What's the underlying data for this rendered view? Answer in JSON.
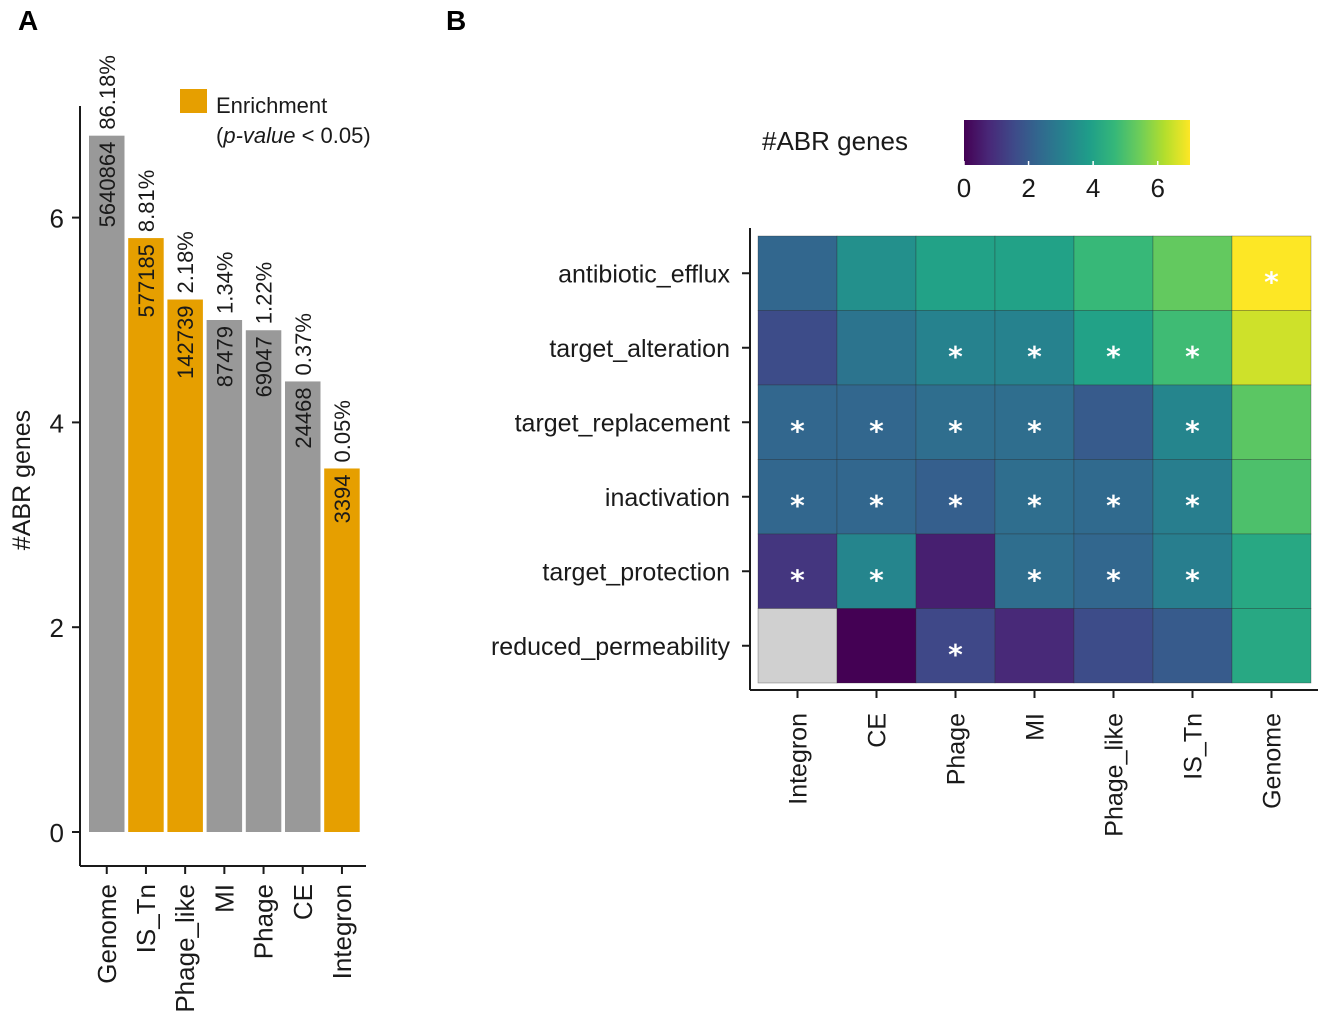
{
  "panels": {
    "a_label": "A",
    "b_label": "B"
  },
  "chart_data": [
    {
      "type": "bar",
      "panel": "A",
      "ylabel": "#ABR genes",
      "ylim": [
        0,
        7
      ],
      "yticks": [
        0,
        2,
        4,
        6
      ],
      "categories": [
        "Genome",
        "IS_Tn",
        "Phage_like",
        "MI",
        "Phage",
        "CE",
        "Integron"
      ],
      "values": [
        6.8,
        5.8,
        5.2,
        5.0,
        4.9,
        4.4,
        3.55
      ],
      "counts": [
        "5640864",
        "577185",
        "142739",
        "87479",
        "69047",
        "24468",
        "3394"
      ],
      "percents": [
        "86.18%",
        "8.81%",
        "2.18%",
        "1.34%",
        "1.22%",
        "0.37%",
        "0.05%"
      ],
      "enriched": [
        false,
        true,
        true,
        false,
        false,
        false,
        true
      ],
      "colors": {
        "enriched": "#E69F00",
        "default": "#999999"
      },
      "legend": {
        "label": "Enrichment",
        "note_prefix": "(",
        "note_italic": "p-value",
        "note_suffix": " < 0.05)",
        "position": "top-right"
      },
      "grid": false
    },
    {
      "type": "heatmap",
      "panel": "B",
      "rows": [
        "antibiotic_efflux",
        "target_alteration",
        "target_replacement",
        "inactivation",
        "target_protection",
        "reduced_permeability"
      ],
      "columns": [
        "Integron",
        "CE",
        "Phage",
        "MI",
        "Phage_like",
        "IS_Tn",
        "Genome"
      ],
      "values": [
        [
          2.3,
          3.5,
          4.0,
          4.0,
          4.7,
          5.3,
          7.0
        ],
        [
          1.6,
          2.7,
          3.1,
          3.1,
          4.0,
          4.8,
          6.5
        ],
        [
          2.3,
          2.3,
          2.5,
          2.5,
          2.0,
          3.2,
          5.2
        ],
        [
          2.3,
          2.3,
          2.1,
          2.5,
          2.4,
          3.0,
          5.0
        ],
        [
          1.1,
          3.2,
          0.6,
          2.5,
          2.3,
          3.0,
          4.2
        ],
        [
          null,
          0.0,
          1.5,
          0.8,
          1.6,
          2.0,
          4.2
        ]
      ],
      "significant": [
        [
          false,
          false,
          false,
          false,
          false,
          false,
          true
        ],
        [
          false,
          false,
          true,
          true,
          true,
          true,
          false
        ],
        [
          true,
          true,
          true,
          true,
          false,
          true,
          false
        ],
        [
          true,
          true,
          true,
          true,
          true,
          true,
          false
        ],
        [
          true,
          true,
          false,
          true,
          true,
          true,
          false
        ],
        [
          false,
          false,
          true,
          false,
          false,
          false,
          false
        ]
      ],
      "star_glyph": "*",
      "missing_color": "#D0D0D0",
      "colorbar": {
        "title": "#ABR genes",
        "range": [
          0,
          7
        ],
        "ticks": [
          0,
          2,
          4,
          6
        ],
        "palette": "viridis"
      }
    }
  ]
}
